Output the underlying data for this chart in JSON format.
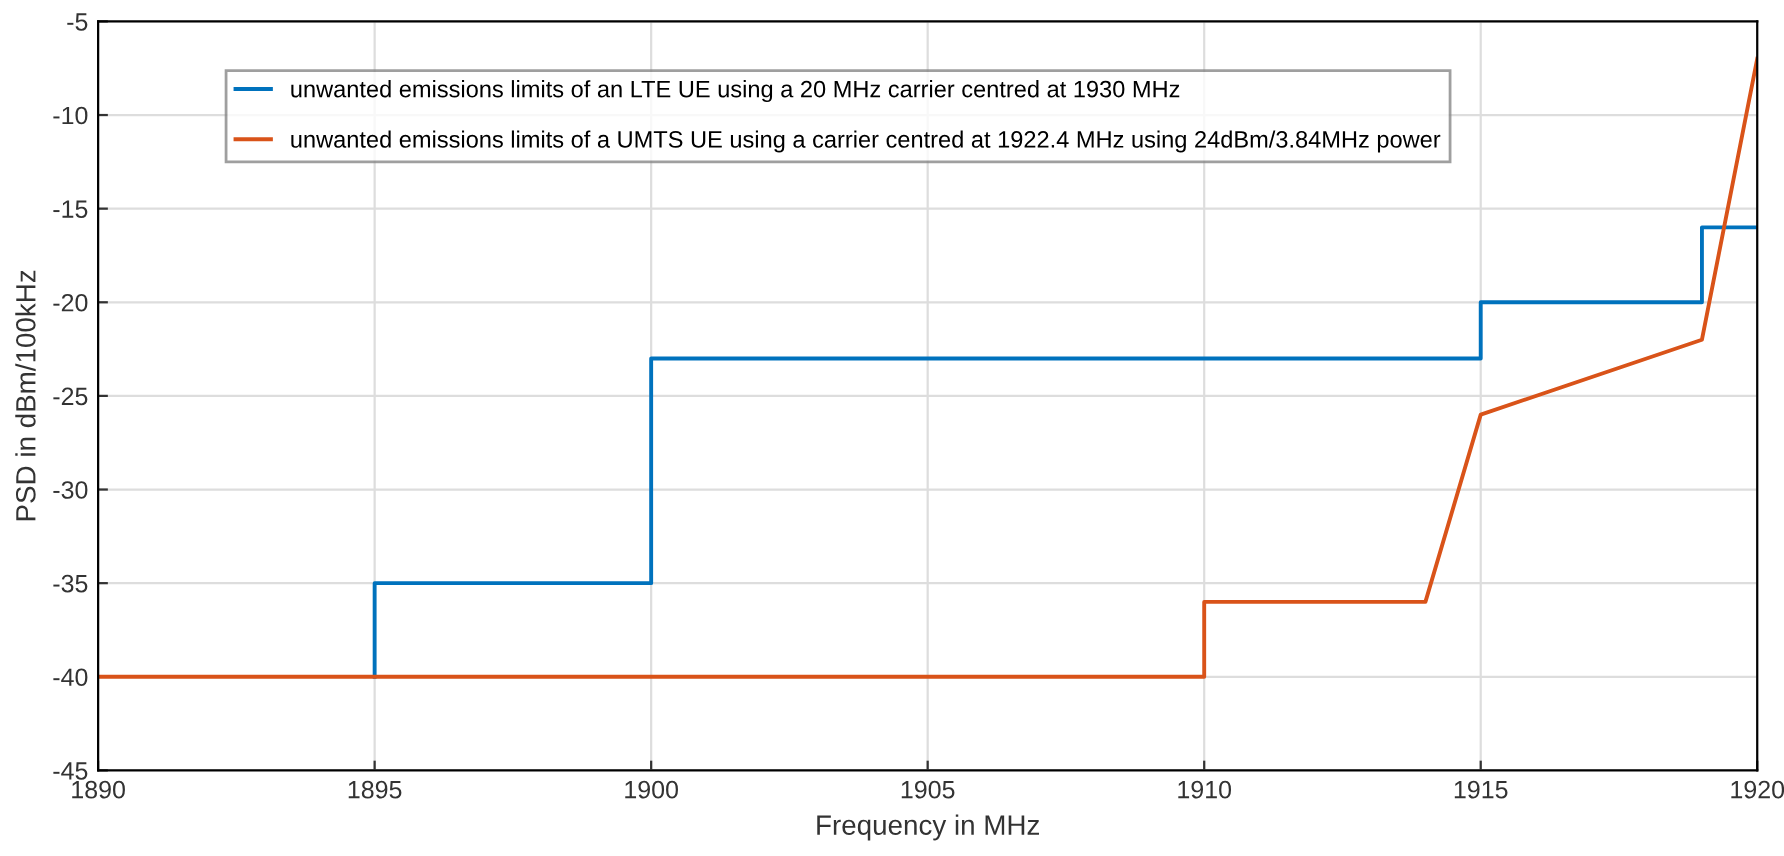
{
  "chart_data": {
    "type": "line",
    "xlabel": "Frequency in MHz",
    "ylabel": "PSD in dBm/100kHz",
    "xlim": [
      1890,
      1920
    ],
    "xticks": [
      1890,
      1895,
      1900,
      1905,
      1910,
      1915,
      1920
    ],
    "ylim": [
      -45,
      -5
    ],
    "yticks": [
      -45,
      -40,
      -35,
      -30,
      -25,
      -20,
      -15,
      -10,
      -5
    ],
    "grid": true,
    "legend": "top left",
    "line_style": "solid",
    "marker": "none",
    "series": [
      {
        "name": "unwanted emissions limits of an LTE UE using a 20 MHz carrier centred at 1930 MHz",
        "color": "#0072bd",
        "x": [
          1895,
          1895,
          1900,
          1900,
          1915,
          1915,
          1919,
          1919,
          1920
        ],
        "values": [
          -40,
          -35,
          -35,
          -23,
          -23,
          -20,
          -20,
          -16,
          -16
        ]
      },
      {
        "name": "unwanted emissions limits of a UMTS UE using a carrier centred at 1922.4 MHz using 24dBm/3.84MHz power",
        "color": "#d95319",
        "x": [
          1890,
          1910,
          1910,
          1914,
          1915,
          1919,
          1920
        ],
        "values": [
          -40,
          -40,
          -36,
          -36,
          -26,
          -22,
          -7
        ]
      }
    ]
  }
}
